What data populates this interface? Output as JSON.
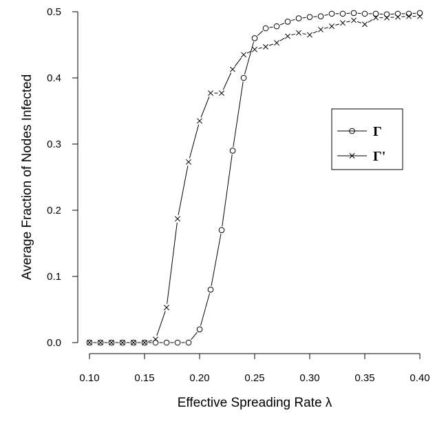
{
  "chart_data": {
    "type": "line",
    "title": "",
    "xlabel": "Effective Spreading Rate  λ",
    "ylabel": "Average Fraction of Nodes Infected",
    "xlim": [
      0.1,
      0.4
    ],
    "ylim": [
      0.0,
      0.5
    ],
    "x_ticks": [
      "0.10",
      "0.15",
      "0.20",
      "0.25",
      "0.30",
      "0.35",
      "0.40"
    ],
    "y_ticks": [
      "0.0",
      "0.1",
      "0.2",
      "0.3",
      "0.4",
      "0.5"
    ],
    "grid": false,
    "legend_position": "right-middle",
    "x": [
      0.1,
      0.11,
      0.12,
      0.13,
      0.14,
      0.15,
      0.16,
      0.17,
      0.18,
      0.19,
      0.2,
      0.21,
      0.22,
      0.23,
      0.24,
      0.25,
      0.26,
      0.27,
      0.28,
      0.29,
      0.3,
      0.31,
      0.32,
      0.33,
      0.34,
      0.35,
      0.36,
      0.37,
      0.38,
      0.39,
      0.4
    ],
    "series": [
      {
        "name": "Γ",
        "marker": "circle",
        "values": [
          0,
          0,
          0,
          0,
          0,
          0,
          0,
          0,
          0,
          0,
          0.02,
          0.08,
          0.17,
          0.29,
          0.4,
          0.46,
          0.475,
          0.478,
          0.485,
          0.49,
          0.492,
          0.493,
          0.497,
          0.497,
          0.498,
          0.497,
          0.497,
          0.496,
          0.497,
          0.497,
          0.498
        ]
      },
      {
        "name": "Γ'",
        "marker": "cross",
        "values": [
          0,
          0,
          0,
          0,
          0,
          0,
          0.005,
          0.053,
          0.187,
          0.273,
          0.335,
          0.377,
          0.377,
          0.413,
          0.435,
          0.443,
          0.447,
          0.453,
          0.463,
          0.468,
          0.465,
          0.473,
          0.478,
          0.483,
          0.487,
          0.481,
          0.491,
          0.491,
          0.492,
          0.493,
          0.493
        ]
      }
    ]
  }
}
